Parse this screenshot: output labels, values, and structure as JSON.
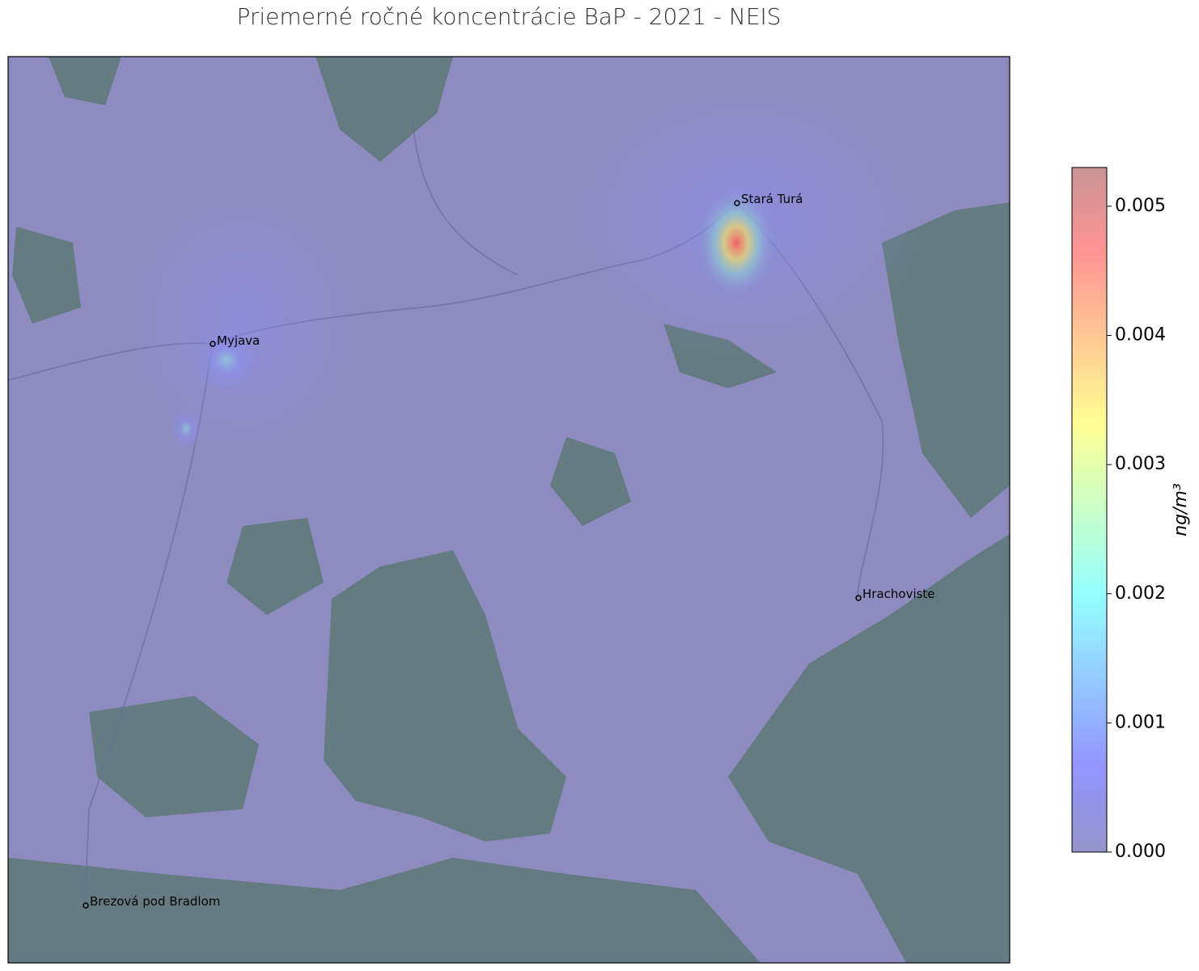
{
  "title": "Priemerné ročné koncentrácie BaP - 2021 - NEIS",
  "places": [
    {
      "name": "Stará Turá"
    },
    {
      "name": "Myjava"
    },
    {
      "name": "Hrachoviste"
    },
    {
      "name": "Brezová pod Bradlom"
    }
  ],
  "colorbar": {
    "label": "ng/m³",
    "colormap": "jet",
    "range": [
      0,
      0.0053
    ],
    "ticks": [
      {
        "value": 0,
        "label": "0.000"
      },
      {
        "value": 0.001,
        "label": "0.001"
      },
      {
        "value": 0.002,
        "label": "0.002"
      },
      {
        "value": 0.003,
        "label": "0.003"
      },
      {
        "value": 0.004,
        "label": "0.004"
      },
      {
        "value": 0.005,
        "label": "0.005"
      }
    ]
  }
}
